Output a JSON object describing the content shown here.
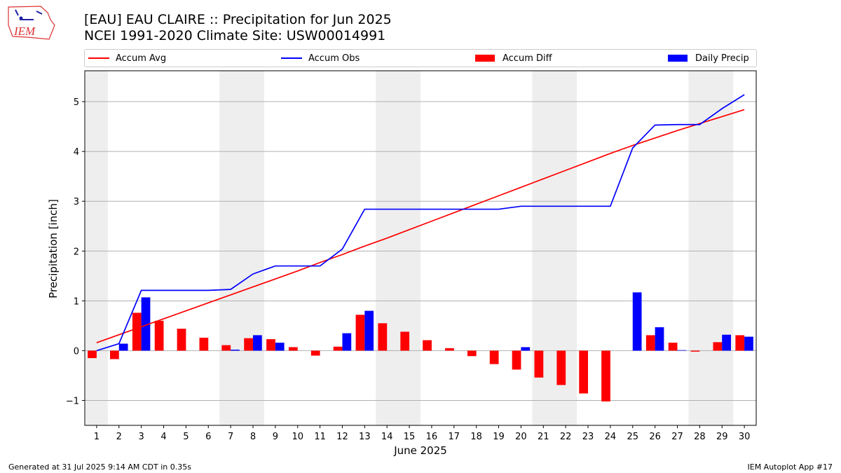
{
  "header": {
    "title_line1": "[EAU] EAU CLAIRE :: Precipitation for Jun 2025",
    "title_line2": "NCEI 1991-2020 Climate Site: USW00014991"
  },
  "logo": {
    "text": "IEM"
  },
  "footer": {
    "generated": "Generated at 31 Jul 2025 9:14 AM CDT in 0.35s",
    "app": "IEM Autoplot App #17"
  },
  "colors": {
    "accum_avg": "#ff0000",
    "accum_obs": "#0000ff",
    "accum_diff": "#ff0000",
    "daily_precip": "#0000ff",
    "weekend_shade": "#eeeeee",
    "grid": "#b0b0b0"
  },
  "chart_data": {
    "type": "bar",
    "xlabel": "June 2025",
    "ylabel": "Precipitation [inch]",
    "ylim": [
      -1.5,
      5.62
    ],
    "yticks": [
      -1,
      0,
      1,
      2,
      3,
      4,
      5
    ],
    "ytick_labels": [
      "−1",
      "0",
      "1",
      "2",
      "3",
      "4",
      "5"
    ],
    "grid": "horizontal",
    "legend_position": "top",
    "legend": [
      "Accum Avg",
      "Accum Obs",
      "Accum Diff",
      "Daily Precip"
    ],
    "categories": [
      "1",
      "2",
      "3",
      "4",
      "5",
      "6",
      "7",
      "8",
      "9",
      "10",
      "11",
      "12",
      "13",
      "14",
      "15",
      "16",
      "17",
      "18",
      "19",
      "20",
      "21",
      "22",
      "23",
      "24",
      "25",
      "26",
      "27",
      "28",
      "29",
      "30"
    ],
    "shaded_days": [
      [
        1,
        1
      ],
      [
        7,
        8
      ],
      [
        14,
        15
      ],
      [
        21,
        22
      ],
      [
        28,
        29
      ]
    ],
    "series": [
      {
        "name": "Accum Avg",
        "kind": "line",
        "values": [
          0.16,
          0.32,
          0.48,
          0.64,
          0.8,
          0.96,
          1.12,
          1.28,
          1.44,
          1.6,
          1.77,
          1.93,
          2.1,
          2.26,
          2.43,
          2.6,
          2.77,
          2.94,
          3.11,
          3.28,
          3.45,
          3.62,
          3.79,
          3.96,
          4.12,
          4.27,
          4.42,
          4.56,
          4.7,
          4.84
        ]
      },
      {
        "name": "Accum Obs",
        "kind": "line",
        "values": [
          0.0,
          0.14,
          1.21,
          1.21,
          1.21,
          1.21,
          1.23,
          1.54,
          1.7,
          1.7,
          1.7,
          2.04,
          2.84,
          2.84,
          2.84,
          2.84,
          2.84,
          2.84,
          2.84,
          2.9,
          2.9,
          2.9,
          2.9,
          2.9,
          4.07,
          4.53,
          4.54,
          4.54,
          4.86,
          5.14
        ]
      },
      {
        "name": "Accum Diff",
        "kind": "bar",
        "values": [
          -0.15,
          -0.17,
          0.76,
          0.6,
          0.44,
          0.26,
          0.11,
          0.25,
          0.23,
          0.07,
          -0.1,
          0.08,
          0.72,
          0.55,
          0.38,
          0.21,
          0.05,
          -0.11,
          -0.27,
          -0.38,
          -0.54,
          -0.69,
          -0.86,
          -1.02,
          0.0,
          0.31,
          0.16,
          -0.02,
          0.17,
          0.31
        ]
      },
      {
        "name": "Daily Precip",
        "kind": "bar",
        "values": [
          0.0,
          0.14,
          1.07,
          0.0,
          0.0,
          0.0,
          0.02,
          0.31,
          0.16,
          0.0,
          0.0,
          0.35,
          0.8,
          0.0,
          0.0,
          0.0,
          0.0,
          0.0,
          0.0,
          0.07,
          0.0,
          0.0,
          0.0,
          0.0,
          1.17,
          0.47,
          0.01,
          0.0,
          0.32,
          0.28
        ]
      }
    ]
  }
}
